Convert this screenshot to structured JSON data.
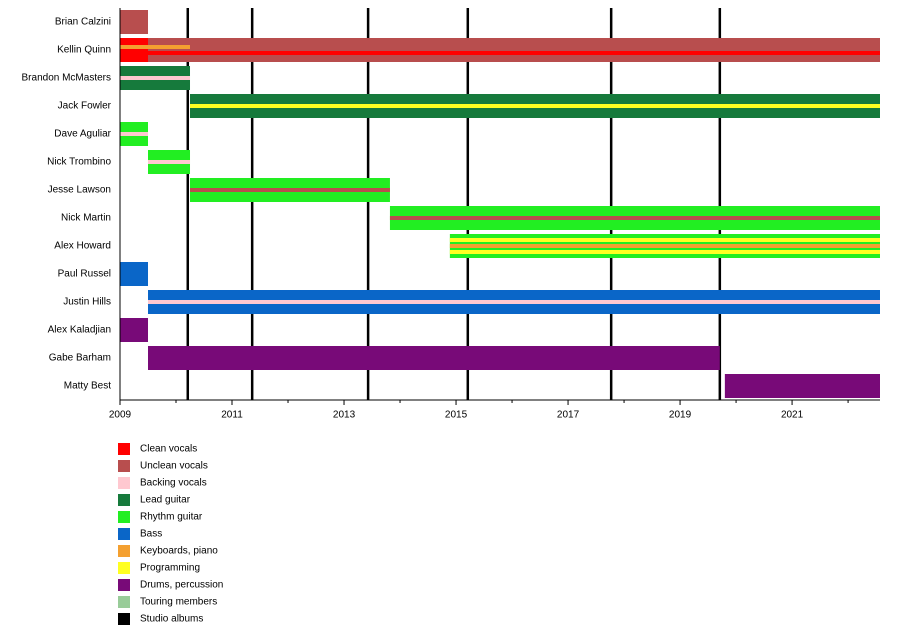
{
  "chart_data": {
    "type": "timeline",
    "xlim": [
      2009,
      2022.57
    ],
    "xticks": [
      2009,
      2011,
      2013,
      2015,
      2017,
      2019,
      2021
    ],
    "xminorticks": [
      2010,
      2012,
      2014,
      2016,
      2018,
      2020,
      2022
    ],
    "roles": [
      {
        "name": "Clean vocals",
        "color": "#ff0000"
      },
      {
        "name": "Unclean vocals",
        "color": "#b84e4e"
      },
      {
        "name": "Backing vocals",
        "color": "#ffc8d0"
      },
      {
        "name": "Lead guitar",
        "color": "#167a3c"
      },
      {
        "name": "Rhythm guitar",
        "color": "#22ee22"
      },
      {
        "name": "Bass",
        "color": "#0a66c8"
      },
      {
        "name": "Keyboards, piano",
        "color": "#f4a030"
      },
      {
        "name": "Programming",
        "color": "#ffff22"
      },
      {
        "name": "Drums, percussion",
        "color": "#780a78"
      },
      {
        "name": "Touring members",
        "color": "#99cc99"
      },
      {
        "name": "Studio albums",
        "color": "#000000"
      }
    ],
    "albums": [
      2010.21,
      2011.36,
      2013.43,
      2015.21,
      2017.77,
      2019.71
    ],
    "members": [
      {
        "name": "Brian Calzini",
        "bars": [
          {
            "role": "Unclean vocals",
            "start": 2009,
            "end": 2009.5
          }
        ],
        "stripes": []
      },
      {
        "name": "Kellin Quinn",
        "bars": [
          {
            "role": "Clean vocals",
            "start": 2009,
            "end": 2009.5
          },
          {
            "role": "Unclean vocals",
            "start": 2009.5,
            "end": 2022.57
          }
        ],
        "stripes": [
          {
            "role": "Keyboards, piano",
            "start": 2009,
            "end": 2010.25
          },
          {
            "role": "Clean vocals",
            "start": 2009.5,
            "end": 2022.57
          }
        ]
      },
      {
        "name": "Brandon McMasters",
        "bars": [
          {
            "role": "Lead guitar",
            "start": 2009,
            "end": 2010.25
          }
        ],
        "stripes": [
          {
            "role": "Backing vocals",
            "start": 2009,
            "end": 2010.25
          }
        ]
      },
      {
        "name": "Jack Fowler",
        "bars": [
          {
            "role": "Lead guitar",
            "start": 2010.25,
            "end": 2022.57
          }
        ],
        "stripes": [
          {
            "role": "Programming",
            "start": 2010.25,
            "end": 2022.57
          }
        ]
      },
      {
        "name": "Dave Aguliar",
        "bars": [
          {
            "role": "Rhythm guitar",
            "start": 2009,
            "end": 2009.5
          }
        ],
        "stripes": [
          {
            "role": "Backing vocals",
            "start": 2009,
            "end": 2009.5
          }
        ]
      },
      {
        "name": "Nick Trombino",
        "bars": [
          {
            "role": "Rhythm guitar",
            "start": 2009.5,
            "end": 2010.25
          }
        ],
        "stripes": [
          {
            "role": "Backing vocals",
            "start": 2009.5,
            "end": 2010.25
          }
        ]
      },
      {
        "name": "Jesse Lawson",
        "bars": [
          {
            "role": "Rhythm guitar",
            "start": 2010.25,
            "end": 2013.82
          }
        ],
        "stripes": [
          {
            "role": "Unclean vocals",
            "start": 2010.25,
            "end": 2013.82
          }
        ]
      },
      {
        "name": "Nick Martin",
        "bars": [
          {
            "role": "Rhythm guitar",
            "start": 2013.82,
            "end": 2022.57
          }
        ],
        "stripes": [
          {
            "role": "Unclean vocals",
            "start": 2013.82,
            "end": 2022.57
          }
        ]
      },
      {
        "name": "Alex Howard",
        "bars": [
          {
            "role": "Rhythm guitar",
            "start": 2014.89,
            "end": 2022.57
          }
        ],
        "stripes": [
          {
            "role": "Programming",
            "start": 2014.89,
            "end": 2022.57
          },
          {
            "role": "Keyboards, piano",
            "start": 2014.89,
            "end": 2022.57
          },
          {
            "role": "Programming",
            "start": 2014.89,
            "end": 2022.57
          }
        ]
      },
      {
        "name": "Paul Russel",
        "bars": [
          {
            "role": "Bass",
            "start": 2009,
            "end": 2009.5
          }
        ],
        "stripes": []
      },
      {
        "name": "Justin Hills",
        "bars": [
          {
            "role": "Bass",
            "start": 2009.5,
            "end": 2022.57
          }
        ],
        "stripes": [
          {
            "role": "Backing vocals",
            "start": 2009.5,
            "end": 2022.57
          }
        ]
      },
      {
        "name": "Alex Kaladjian",
        "bars": [
          {
            "role": "Drums, percussion",
            "start": 2009,
            "end": 2009.5
          }
        ],
        "stripes": []
      },
      {
        "name": "Gabe Barham",
        "bars": [
          {
            "role": "Drums, percussion",
            "start": 2009.5,
            "end": 2019.71
          }
        ],
        "stripes": []
      },
      {
        "name": "Matty Best",
        "bars": [
          {
            "role": "Drums, percussion",
            "start": 2019.8,
            "end": 2022.57
          }
        ],
        "stripes": []
      }
    ]
  }
}
